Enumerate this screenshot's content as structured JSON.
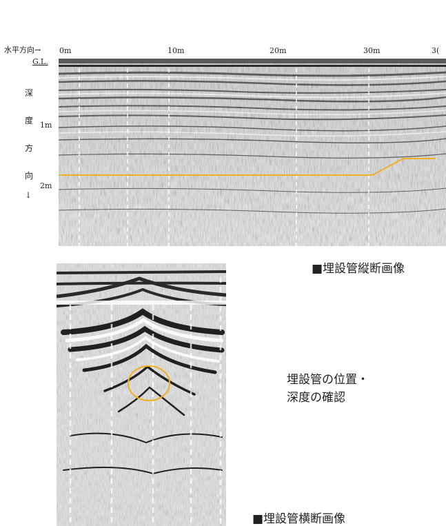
{
  "longitudinal": {
    "horizontal_label": "水平方向→",
    "distance_ticks": [
      "0m",
      "10m",
      "20m",
      "30m",
      "3("
    ],
    "gl_label": "G.L.",
    "depth_ticks": [
      "1m",
      "2m"
    ],
    "vertical_label": [
      "深",
      "度",
      "方",
      "向",
      "↓"
    ],
    "caption": "■埋設管縦断画像",
    "pipe_line_color": "#f0b020"
  },
  "transverse": {
    "caption": "■埋設管横断画像",
    "circle_color": "#f0b020"
  },
  "note": {
    "line1": "埋設管の位置・",
    "line2": "深度の確認"
  }
}
